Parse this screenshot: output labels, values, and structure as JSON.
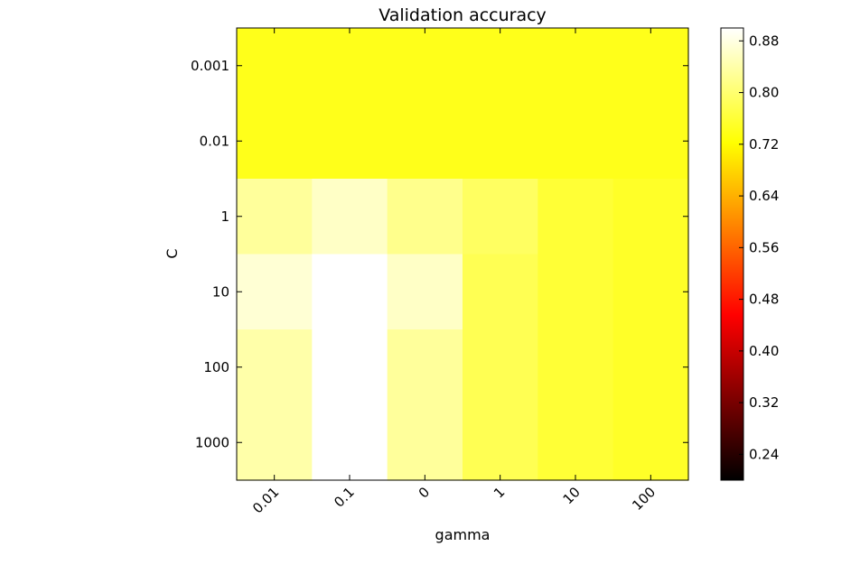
{
  "chart_data": {
    "type": "heatmap",
    "title": "Validation accuracy",
    "xlabel": "gamma",
    "ylabel": "C",
    "x_categories": [
      "0.01",
      "0.1",
      "0",
      "1",
      "10",
      "100"
    ],
    "y_categories": [
      "0.001",
      "0.01",
      "1",
      "10",
      "100",
      "1000"
    ],
    "values": [
      [
        0.74,
        0.74,
        0.74,
        0.74,
        0.74,
        0.74
      ],
      [
        0.74,
        0.74,
        0.74,
        0.74,
        0.74,
        0.74
      ],
      [
        0.83,
        0.86,
        0.82,
        0.79,
        0.76,
        0.75
      ],
      [
        0.87,
        0.9,
        0.86,
        0.78,
        0.76,
        0.75
      ],
      [
        0.84,
        0.9,
        0.83,
        0.78,
        0.76,
        0.75
      ],
      [
        0.84,
        0.9,
        0.83,
        0.78,
        0.76,
        0.75
      ]
    ],
    "colormap": "hot",
    "colorbar": {
      "vmin": 0.2,
      "vmax": 0.9,
      "ticks": [
        "0.24",
        "0.32",
        "0.40",
        "0.48",
        "0.56",
        "0.64",
        "0.72",
        "0.80",
        "0.88"
      ]
    },
    "grid": false,
    "legend": "colorbar-right"
  }
}
